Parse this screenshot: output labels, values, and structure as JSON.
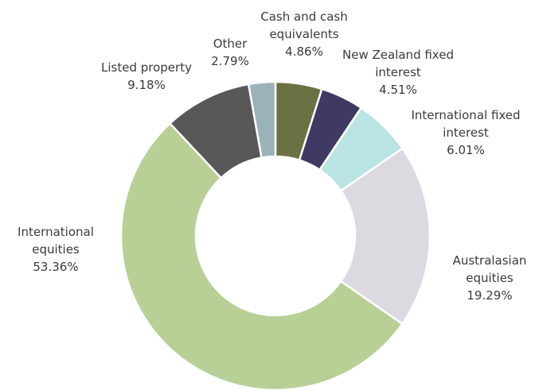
{
  "chart_data": {
    "type": "donut",
    "categories": [
      "Cash and cash equivalents",
      "New Zealand fixed interest",
      "International fixed interest",
      "Australasian equities",
      "International equities",
      "Listed property",
      "Other"
    ],
    "values": [
      4.86,
      4.51,
      6.01,
      19.29,
      53.36,
      9.18,
      2.79
    ],
    "value_labels": [
      "4.86%",
      "4.51%",
      "6.01%",
      "19.29%",
      "53.36%",
      "9.18%",
      "2.79%"
    ],
    "colors": [
      "#6b7143",
      "#3f3a63",
      "#b9e4e3",
      "#dcd9e1",
      "#b8cf96",
      "#585858",
      "#9ab3b8"
    ]
  }
}
